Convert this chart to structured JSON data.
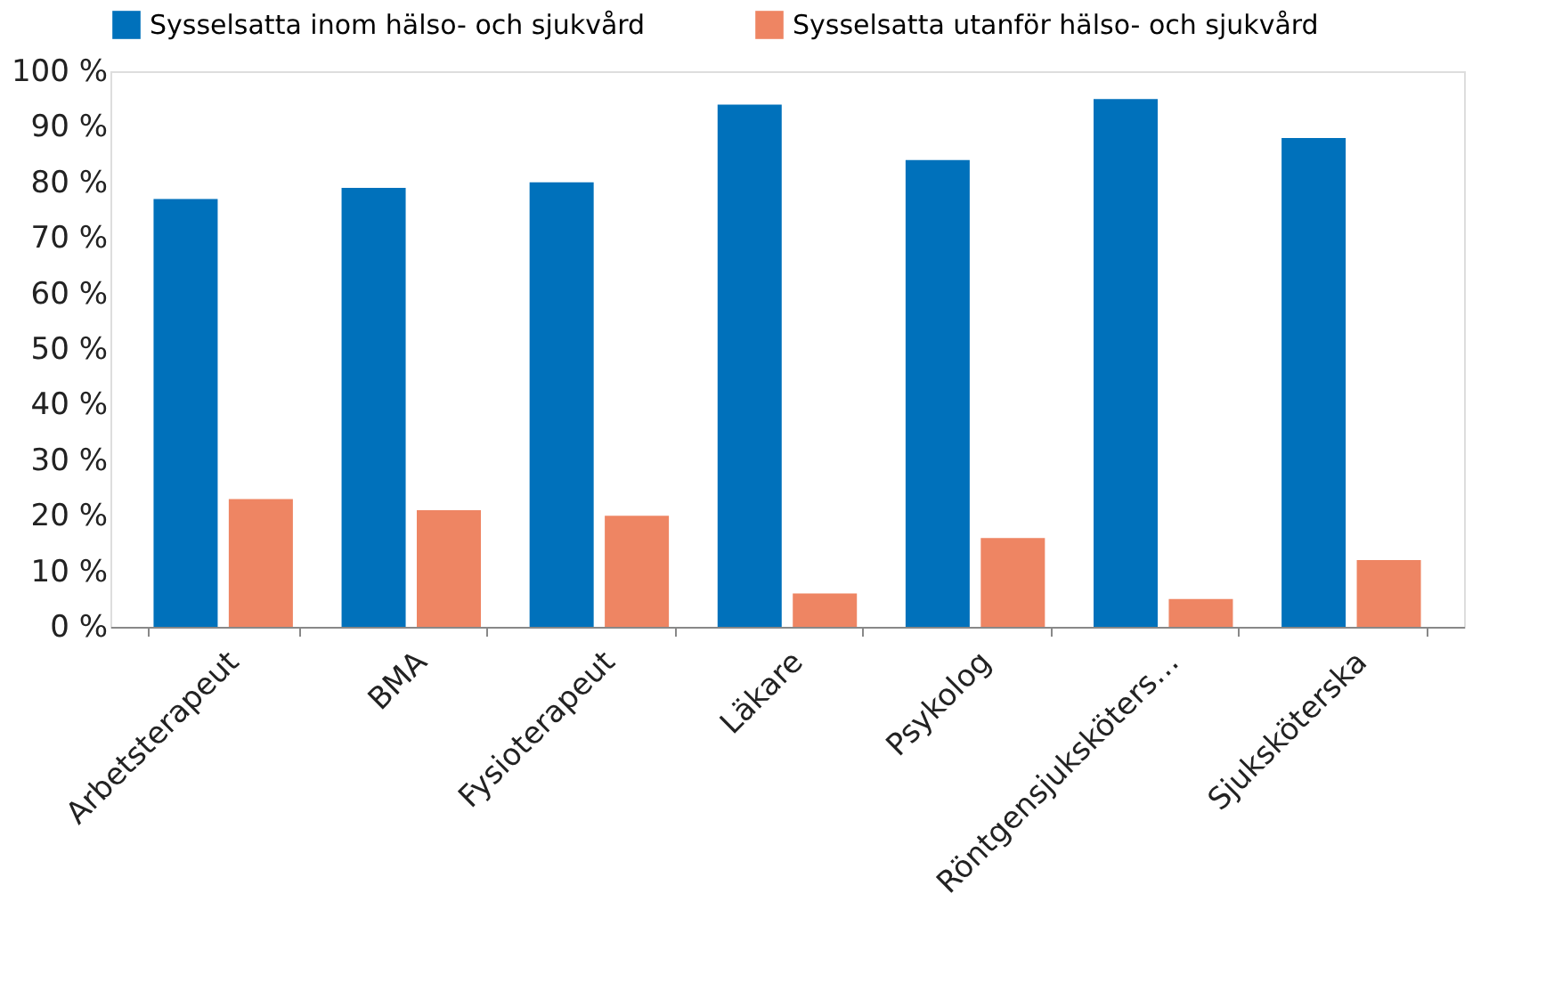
{
  "chart_data": {
    "type": "bar",
    "categories": [
      "Arbetsterapeut",
      "BMA",
      "Fysioterapeut",
      "Läkare",
      "Psykolog",
      "Röntgensjuksköters…",
      "Sjuksköterska"
    ],
    "series": [
      {
        "name": "Sysselsatta inom hälso- och sjukvård",
        "color": "#0071bb",
        "values": [
          77,
          79,
          80,
          94,
          84,
          95,
          88
        ]
      },
      {
        "name": "Sysselsatta utanför hälso- och sjukvård",
        "color": "#ee8563",
        "values": [
          23,
          21,
          20,
          6,
          16,
          5,
          12
        ]
      }
    ],
    "ylim": [
      0,
      100
    ],
    "yticks": [
      {
        "value": 0,
        "label": "0 %"
      },
      {
        "value": 10,
        "label": "10 %"
      },
      {
        "value": 20,
        "label": "20 %"
      },
      {
        "value": 30,
        "label": "30 %"
      },
      {
        "value": 40,
        "label": "40 %"
      },
      {
        "value": 50,
        "label": "50 %"
      },
      {
        "value": 60,
        "label": "60 %"
      },
      {
        "value": 70,
        "label": "70 %"
      },
      {
        "value": 80,
        "label": "80 %"
      },
      {
        "value": 90,
        "label": "90 %"
      },
      {
        "value": 100,
        "label": "100 %"
      }
    ],
    "grid": false,
    "legend": "top"
  }
}
